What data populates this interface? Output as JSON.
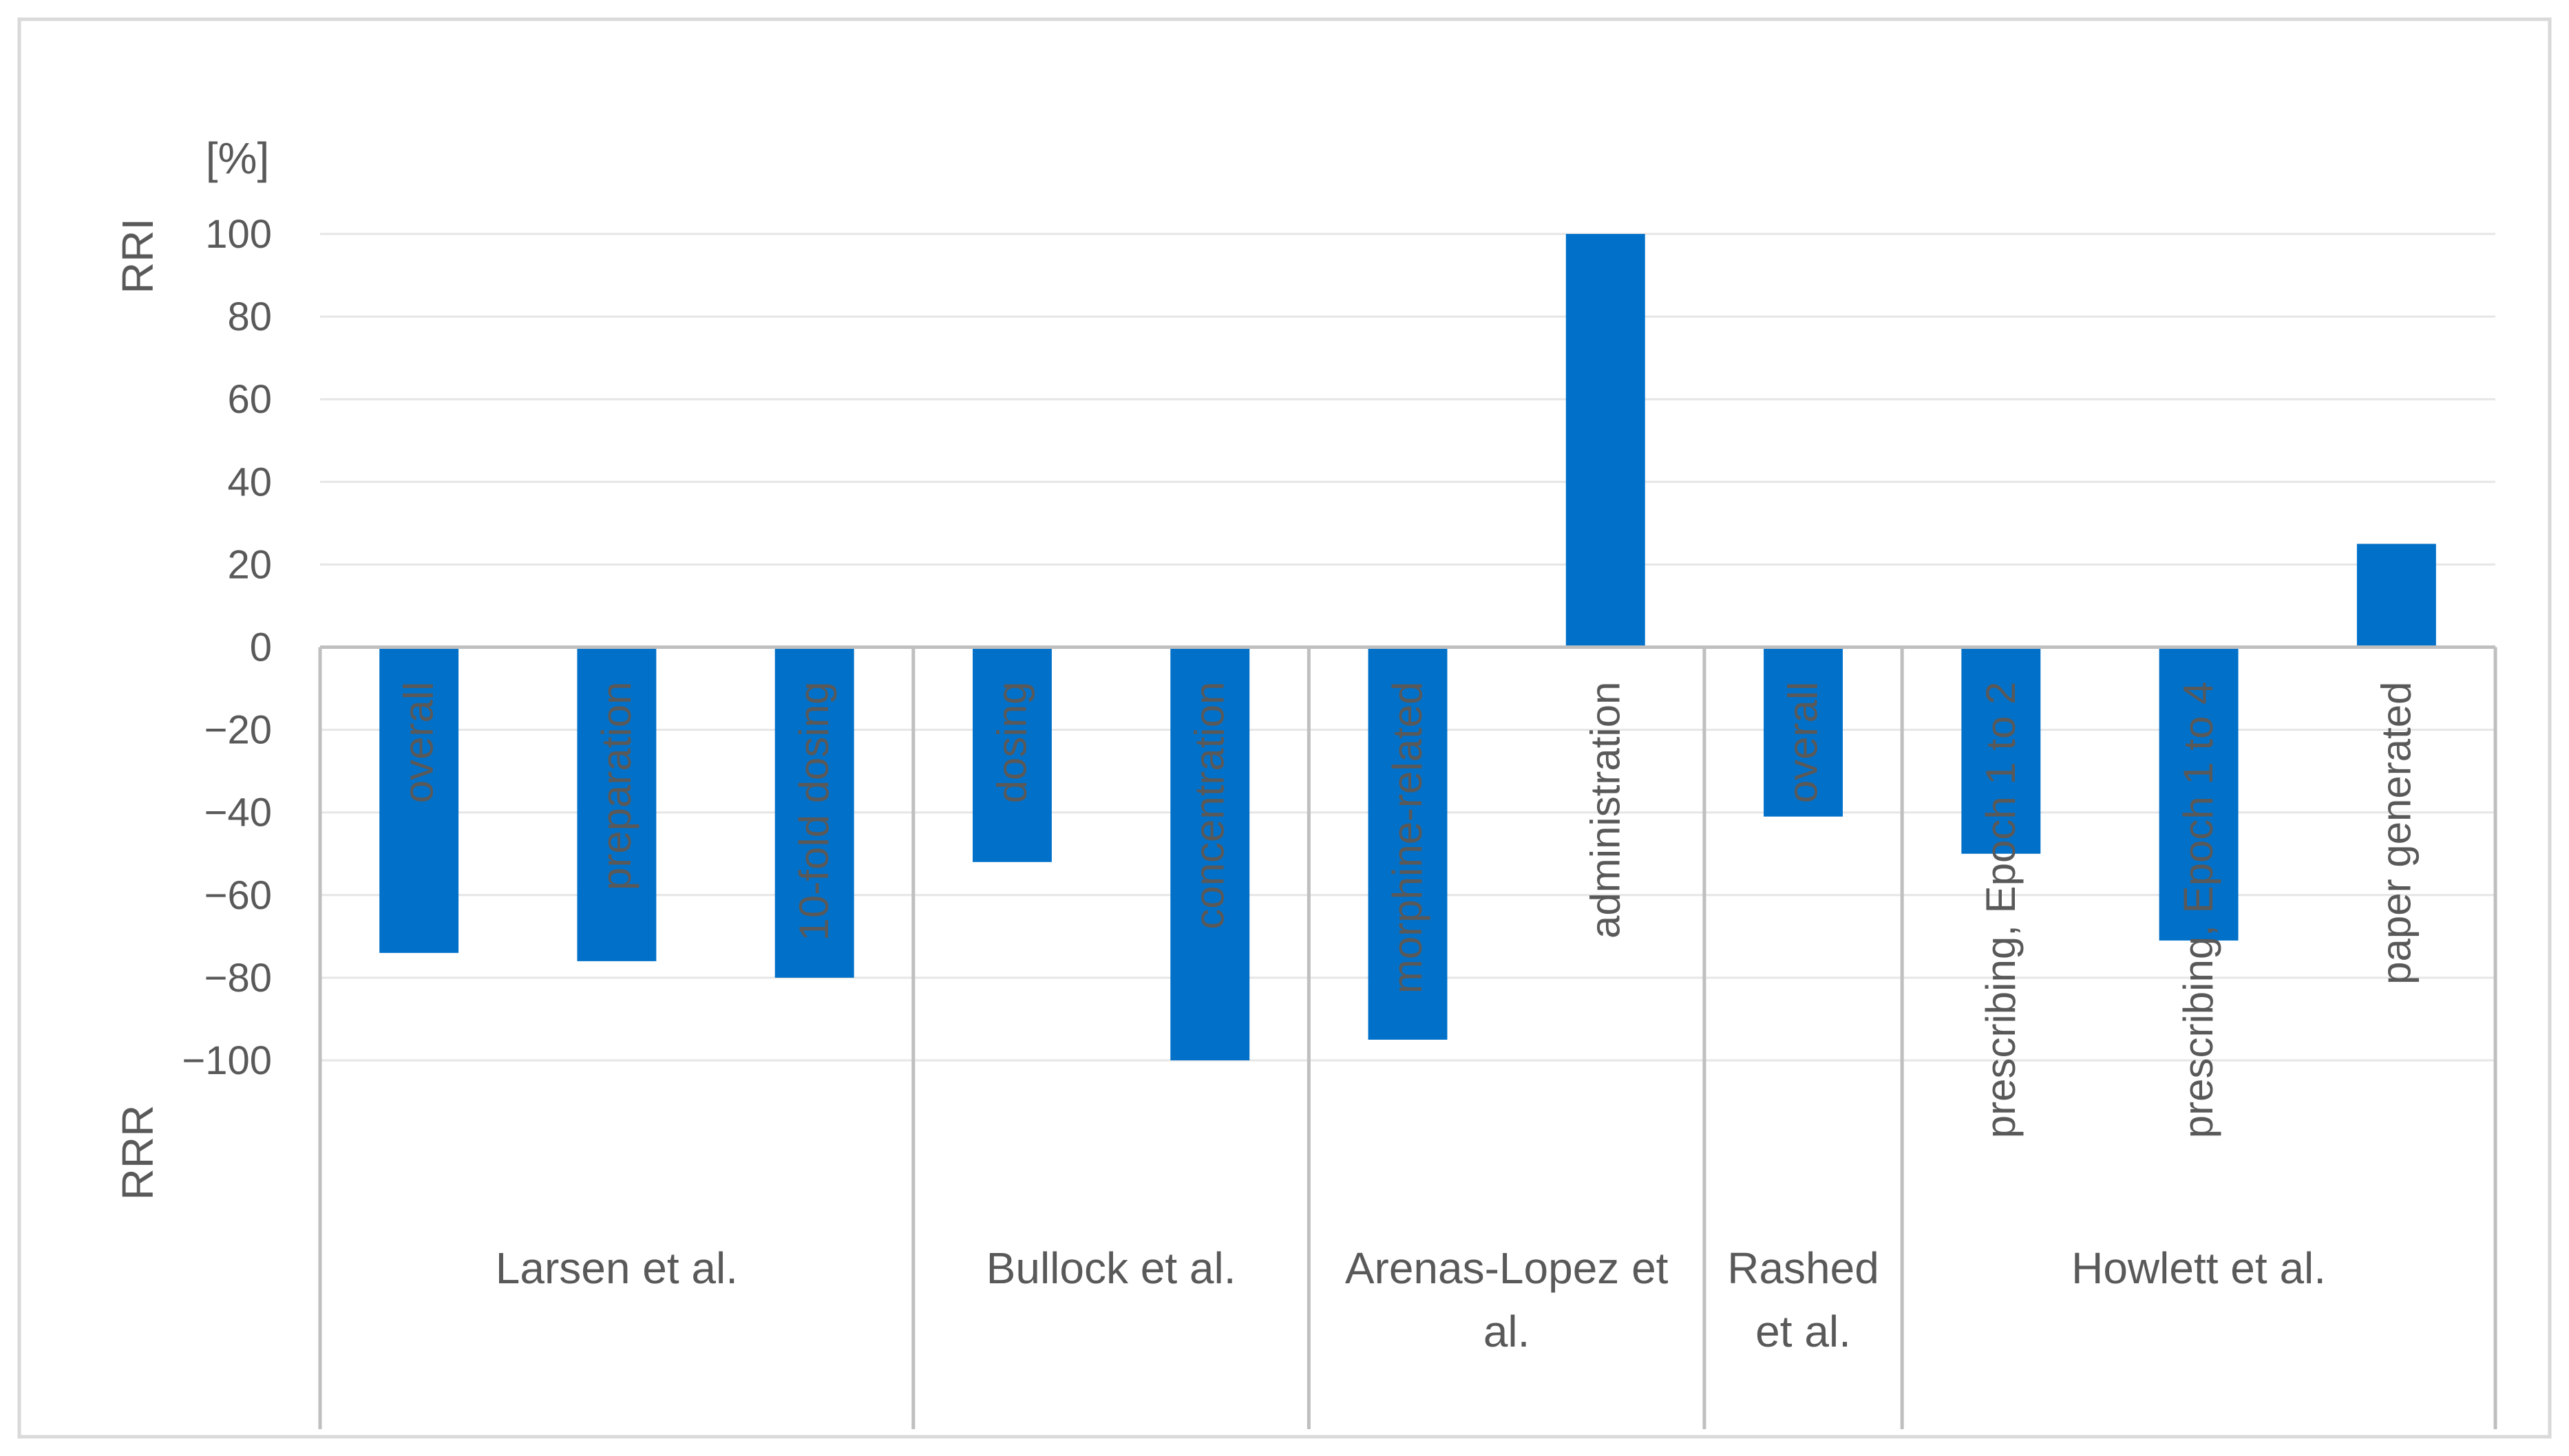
{
  "chart_data": {
    "type": "bar",
    "unit_label": "[%]",
    "ylabel_top": "RRI",
    "ylabel_bottom": "RRR",
    "ylim": [
      -100,
      100
    ],
    "yticks": [
      100,
      80,
      60,
      40,
      20,
      0,
      -20,
      -40,
      -60,
      -80,
      -100
    ],
    "ytick_labels": [
      "100",
      "80",
      "60",
      "40",
      "20",
      "0",
      "−20",
      "−40",
      "−60",
      "−80",
      "−100"
    ],
    "grid": true,
    "bar_color": "#0070C9",
    "bars": [
      {
        "label": "overall",
        "value": -74
      },
      {
        "label": "preparation",
        "value": -76
      },
      {
        "label": "10-fold dosing",
        "value": -80
      },
      {
        "label": "dosing",
        "value": -52
      },
      {
        "label": "concentration",
        "value": -100
      },
      {
        "label": "morphine-related",
        "value": -95
      },
      {
        "label": "administration",
        "value": 100
      },
      {
        "label": "overall",
        "value": -41
      },
      {
        "label": "prescribing, Epoch 1 to 2",
        "value": -50
      },
      {
        "label": "prescribing, Epoch 1 to 4",
        "value": -71
      },
      {
        "label": "paper generated",
        "value": 25
      }
    ],
    "groups": [
      {
        "label_lines": [
          "Larsen et al."
        ],
        "count": 3
      },
      {
        "label_lines": [
          "Bullock et al."
        ],
        "count": 2
      },
      {
        "label_lines": [
          "Arenas-Lopez et",
          "al."
        ],
        "count": 2
      },
      {
        "label_lines": [
          "Rashed",
          "et al."
        ],
        "count": 1
      },
      {
        "label_lines": [
          "Howlett et al."
        ],
        "count": 3
      }
    ]
  }
}
